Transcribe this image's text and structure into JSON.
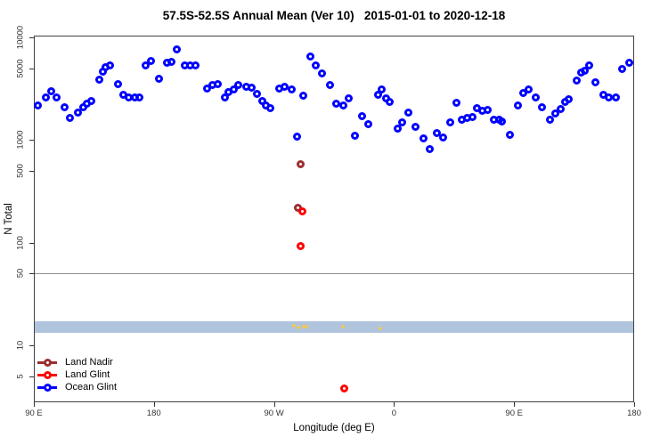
{
  "title": "57.5S-52.5S Annual Mean (Ver 10)   2015-01-01 to 2020-12-18",
  "colors": {
    "background": "#ffffff",
    "frame": "#404040",
    "tick_text": "#333333",
    "reference_line": "#909090",
    "band": "#B0C4DE"
  },
  "legend": {
    "items": [
      {
        "label": "Land Nadir",
        "color": "#9b2f2f"
      },
      {
        "label": "Land Glint",
        "color": "#ff0000"
      },
      {
        "label": "Ocean Glint",
        "color": "#0000ff"
      }
    ]
  },
  "chart_data": {
    "type": "scatter",
    "title": "57.5S-52.5S Annual Mean (Ver 10)   2015-01-01 to 2020-12-18",
    "xlabel": "Longitude (deg E)",
    "ylabel": "N Total",
    "x_axis": {
      "note": "axis spans 450 deg starting at 90E and wrapping past 180 to 180 again",
      "range_deg": [
        0,
        450
      ],
      "tick_degrees": [
        0,
        90,
        180,
        270,
        360,
        450
      ],
      "tick_labels": [
        "90 E",
        "180",
        "90 W",
        "0",
        "90 E",
        "180"
      ]
    },
    "y_axis": {
      "scale": "log",
      "range": [
        2.8,
        10400
      ],
      "tick_values": [
        10000,
        5000,
        1000,
        500,
        100,
        50,
        10,
        5
      ],
      "tick_labels": [
        "10000",
        "5000",
        "1000",
        "500",
        "100",
        "50",
        "10",
        "5"
      ],
      "grid": false
    },
    "reference_line": {
      "value": 50,
      "color": "#909090"
    },
    "band": {
      "from": 13.2,
      "to": 17.1,
      "color": "#B0C4DE"
    },
    "series": [
      {
        "name": "Land Nadir",
        "color": "#9b2f2f",
        "marker": "open-circle",
        "z": 2,
        "points": [
          [
            200,
            575
          ],
          [
            198,
            216
          ]
        ]
      },
      {
        "name": "Land Glint",
        "color": "#ff0000",
        "marker": "open-circle",
        "z": 3,
        "points": [
          [
            201,
            200
          ],
          [
            200,
            93
          ],
          [
            233,
            3.8
          ]
        ]
      },
      {
        "name": "Ocean Glint",
        "color": "#0000ff",
        "marker": "open-circle",
        "z": 1,
        "points": [
          [
            3,
            2190
          ],
          [
            9,
            2620
          ],
          [
            13,
            2960
          ],
          [
            17,
            2620
          ],
          [
            23,
            2100
          ],
          [
            27,
            1630
          ],
          [
            33,
            1830
          ],
          [
            37,
            2100
          ],
          [
            40,
            2240
          ],
          [
            43,
            2420
          ],
          [
            49,
            3840
          ],
          [
            52,
            4590
          ],
          [
            54,
            5070
          ],
          [
            57,
            5280
          ],
          [
            63,
            3500
          ],
          [
            67,
            2730
          ],
          [
            71,
            2620
          ],
          [
            76,
            2620
          ],
          [
            79,
            2620
          ],
          [
            84,
            5280
          ],
          [
            88,
            5830
          ],
          [
            94,
            3910
          ],
          [
            100,
            5600
          ],
          [
            103,
            5720
          ],
          [
            107,
            7700
          ],
          [
            113,
            5280
          ],
          [
            117,
            5280
          ],
          [
            121,
            5280
          ],
          [
            130,
            3140
          ],
          [
            134,
            3400
          ],
          [
            138,
            3470
          ],
          [
            143,
            2620
          ],
          [
            146,
            2900
          ],
          [
            150,
            3080
          ],
          [
            153,
            3400
          ],
          [
            159,
            3270
          ],
          [
            163,
            3210
          ],
          [
            167,
            2790
          ],
          [
            171,
            2420
          ],
          [
            174,
            2190
          ],
          [
            177,
            2060
          ],
          [
            184,
            3140
          ],
          [
            188,
            3270
          ],
          [
            193,
            3080
          ],
          [
            197,
            1070
          ],
          [
            202,
            2680
          ],
          [
            207,
            6440
          ],
          [
            211,
            5280
          ],
          [
            216,
            4410
          ],
          [
            222,
            3400
          ],
          [
            227,
            2240
          ],
          [
            232,
            2190
          ],
          [
            236,
            2520
          ],
          [
            241,
            1110
          ],
          [
            246,
            1690
          ],
          [
            251,
            1440
          ],
          [
            258,
            2730
          ],
          [
            261,
            3080
          ],
          [
            264,
            2520
          ],
          [
            267,
            2330
          ],
          [
            273,
            1280
          ],
          [
            276,
            1470
          ],
          [
            281,
            1830
          ],
          [
            286,
            1330
          ],
          [
            292,
            1030
          ],
          [
            297,
            810
          ],
          [
            302,
            1160
          ],
          [
            307,
            1050
          ],
          [
            312,
            1470
          ],
          [
            317,
            2280
          ],
          [
            321,
            1590
          ],
          [
            325,
            1630
          ],
          [
            329,
            1660
          ],
          [
            332,
            2060
          ],
          [
            336,
            1910
          ],
          [
            340,
            1950
          ],
          [
            345,
            1560
          ],
          [
            349,
            1590
          ],
          [
            351,
            1500
          ],
          [
            357,
            1130
          ],
          [
            363,
            2150
          ],
          [
            367,
            2840
          ],
          [
            371,
            3080
          ],
          [
            376,
            2570
          ],
          [
            381,
            2100
          ],
          [
            387,
            1560
          ],
          [
            391,
            1800
          ],
          [
            395,
            1990
          ],
          [
            398,
            2330
          ],
          [
            401,
            2470
          ],
          [
            407,
            3760
          ],
          [
            410,
            4500
          ],
          [
            413,
            4680
          ],
          [
            416,
            5280
          ],
          [
            421,
            3610
          ],
          [
            427,
            2730
          ],
          [
            431,
            2620
          ],
          [
            436,
            2620
          ],
          [
            441,
            4900
          ],
          [
            446,
            5600
          ]
        ]
      },
      {
        "name": "unlabeled yellow marks",
        "color": "#edc85f",
        "marker": "blob",
        "z": 0,
        "points": [
          [
            195,
            15.5
          ],
          [
            198,
            14.9
          ],
          [
            202,
            15.2
          ],
          [
            204,
            15.1
          ],
          [
            232,
            15.1
          ],
          [
            260,
            14.6
          ]
        ]
      }
    ]
  }
}
